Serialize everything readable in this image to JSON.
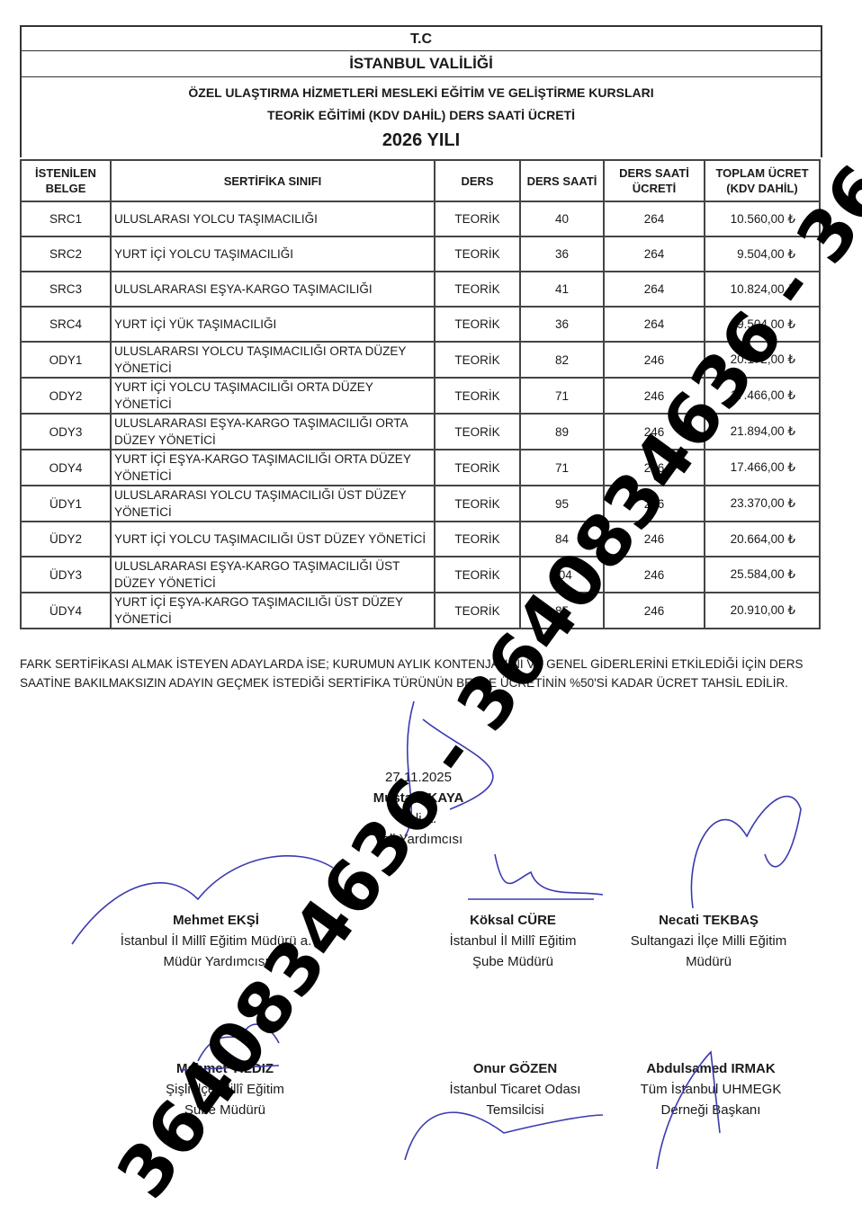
{
  "header": {
    "country": "T.C",
    "office": "İSTANBUL VALİLİĞİ",
    "title_line1": "ÖZEL ULAŞTIRMA HİZMETLERİ MESLEKİ EĞİTİM VE GELİŞTİRME KURSLARI",
    "title_line2": "TEORİK EĞİTİMİ (KDV DAHİL) DERS SAATİ ÜCRETİ",
    "year": "2026 YILI"
  },
  "table": {
    "columns": [
      "İSTENİLEN BELGE",
      "SERTİFİKA SINIFI",
      "DERS",
      "DERS SAATİ",
      "DERS SAATİ ÜCRETİ",
      "TOPLAM ÜCRET (KDV DAHİL)"
    ],
    "rows": [
      [
        "SRC1",
        "ULUSLARASI YOLCU TAŞIMACILIĞI",
        "TEORİK",
        "40",
        "264",
        "10.560,00 ₺"
      ],
      [
        "SRC2",
        "YURT İÇİ YOLCU TAŞIMACILIĞI",
        "TEORİK",
        "36",
        "264",
        "9.504,00 ₺"
      ],
      [
        "SRC3",
        "ULUSLARARASI EŞYA-KARGO TAŞIMACILIĞI",
        "TEORİK",
        "41",
        "264",
        "10.824,00 ₺"
      ],
      [
        "SRC4",
        "YURT İÇİ YÜK TAŞIMACILIĞI",
        "TEORİK",
        "36",
        "264",
        "9.504,00 ₺"
      ],
      [
        "ODY1",
        "ULUSLARARSI YOLCU TAŞIMACILIĞI ORTA DÜZEY YÖNETİCİ",
        "TEORİK",
        "82",
        "246",
        "20.172,00 ₺"
      ],
      [
        "ODY2",
        "YURT İÇİ YOLCU TAŞIMACILIĞI ORTA DÜZEY YÖNETİCİ",
        "TEORİK",
        "71",
        "246",
        "17.466,00 ₺"
      ],
      [
        "ODY3",
        "ULUSLARARASI EŞYA-KARGO TAŞIMACILIĞI ORTA DÜZEY YÖNETİCİ",
        "TEORİK",
        "89",
        "246",
        "21.894,00 ₺"
      ],
      [
        "ODY4",
        "YURT İÇİ EŞYA-KARGO TAŞIMACILIĞI  ORTA DÜZEY YÖNETİCİ",
        "TEORİK",
        "71",
        "246",
        "17.466,00 ₺"
      ],
      [
        "ÜDY1",
        "ULUSLARARASI YOLCU TAŞIMACILIĞI ÜST DÜZEY YÖNETİCİ",
        "TEORİK",
        "95",
        "246",
        "23.370,00 ₺"
      ],
      [
        "ÜDY2",
        "YURT İÇİ YOLCU TAŞIMACILIĞI ÜST DÜZEY YÖNETİCİ",
        "TEORİK",
        "84",
        "246",
        "20.664,00 ₺"
      ],
      [
        "ÜDY3",
        "ULUSLARARASI EŞYA-KARGO TAŞIMACILIĞI ÜST DÜZEY YÖNETİCİ",
        "TEORİK",
        "104",
        "246",
        "25.584,00 ₺"
      ],
      [
        "ÜDY4",
        "YURT İÇİ EŞYA-KARGO TAŞIMACILIĞI  ÜST DÜZEY YÖNETİCİ",
        "TEORİK",
        "85",
        "246",
        "20.910,00 ₺"
      ]
    ]
  },
  "note": "FARK SERTİFİKASI ALMAK İSTEYEN ADAYLARDA İSE; KURUMUN AYLIK KONTENJANINI VE GENEL GİDERLERİNİ ETKİLEDİĞİ İÇİN DERS SAATİNE BAKILMAKSIZIN ADAYIN GEÇMEK İSTEDİĞİ SERTİFİKA TÜRÜNÜN BELGE ÜCRETİNİN %50'Sİ KADAR ÜCRET TAHSİL EDİLİR.",
  "signatories": [
    {
      "date": "27.11.2025",
      "name": "Mustafa KAYA",
      "title1": "Vali a.",
      "title2": "Vali Yardımcısı"
    },
    {
      "name": "Mehmet EKŞİ",
      "title1": "İstanbul İl Millî Eğitim Müdürü a.",
      "title2": "Müdür Yardımcısı"
    },
    {
      "name": "Köksal CÜRE",
      "title1": "İstanbul İl Millî Eğitim",
      "title2": "Şube Müdürü"
    },
    {
      "name": "Necati TEKBAŞ",
      "title1": "Sultangazi İlçe Milli Eğitim",
      "title2": "Müdürü"
    },
    {
      "name": "Mehmet YILDIZ",
      "title1": "Şişli İlçe Millî Eğitim",
      "title2": "Şube Müdürü"
    },
    {
      "name": "Onur GÖZEN",
      "title1": "İstanbul Ticaret Odası",
      "title2": "Temsilcisi"
    },
    {
      "name": "Abdulsamed IRMAK",
      "title1": "Tüm İstanbul UHMEGK",
      "title2": "Derneği Başkanı"
    }
  ],
  "watermark": "3640834636 - 3640834636 - 3640834636 - 3640834636",
  "colors": {
    "ink": "#1a1a1a",
    "signature": "#3a3ab0",
    "watermark": "#000000"
  }
}
